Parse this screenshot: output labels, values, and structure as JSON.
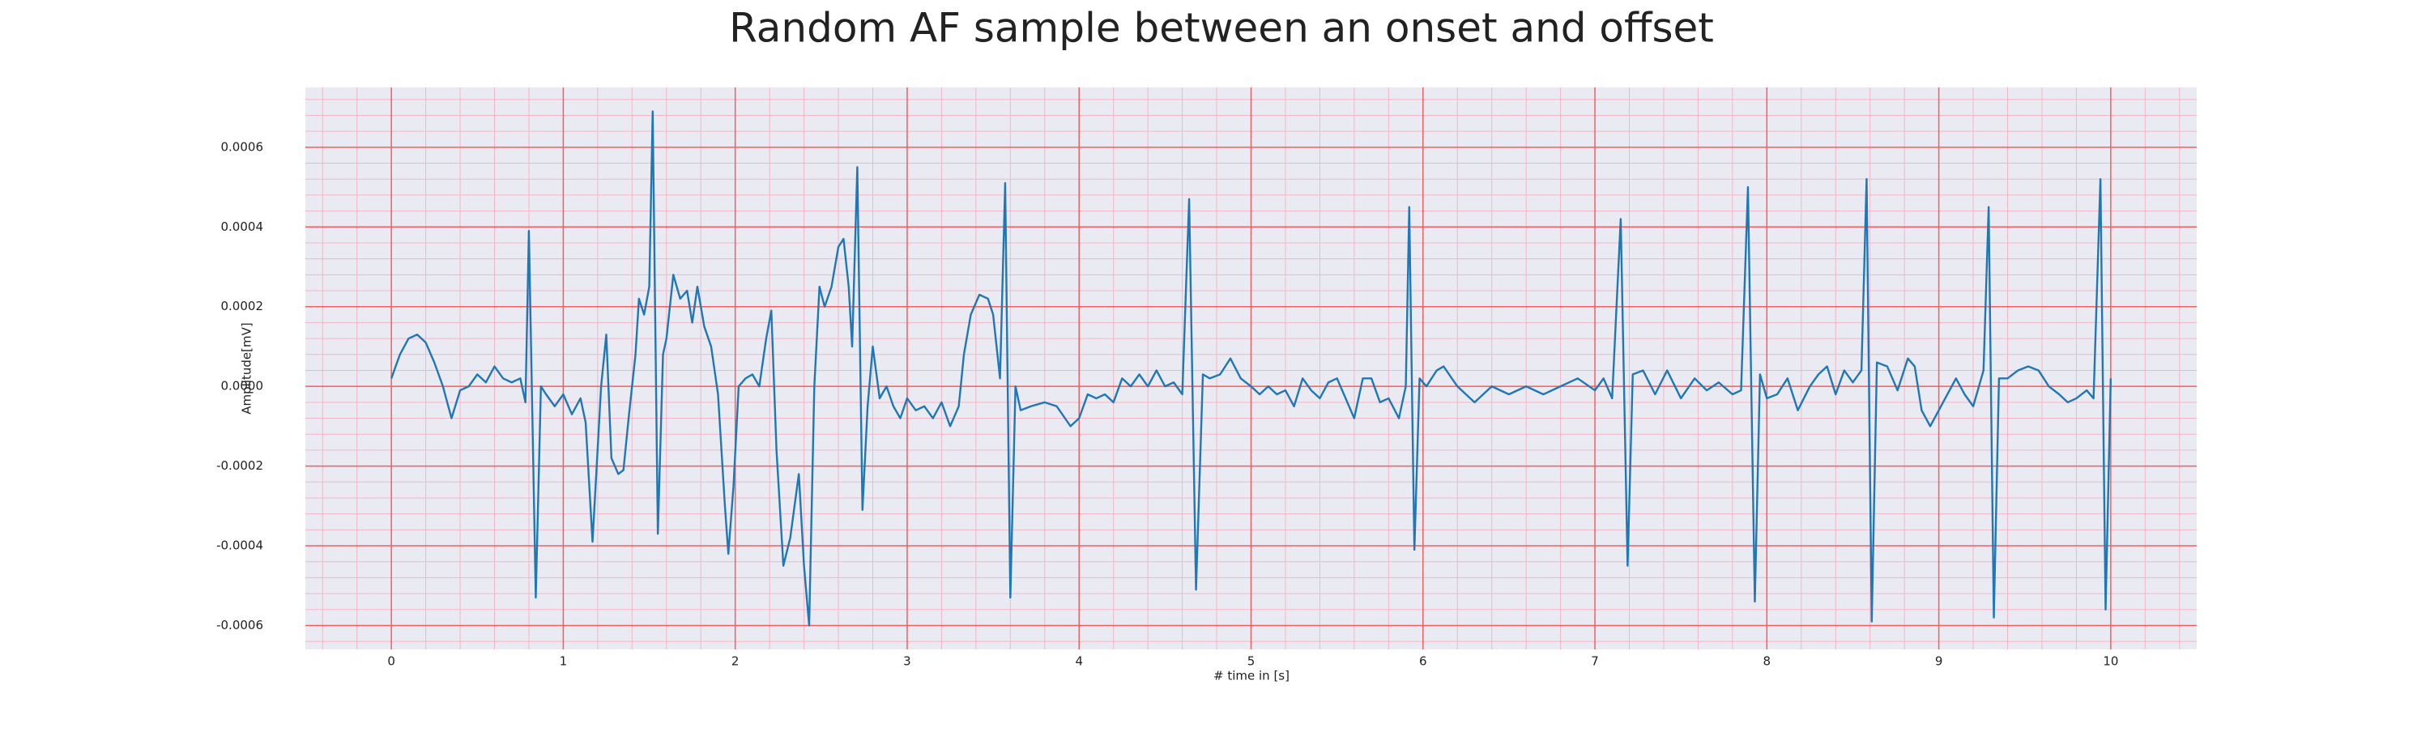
{
  "chart_data": {
    "type": "line",
    "title": "Random AF sample between an onset and offset",
    "xlabel": "# time in [s]",
    "ylabel": "Amplitude[mV]",
    "color": "#1f77b4",
    "grid": true,
    "minor_grid": true,
    "xlim": [
      -0.5,
      10.5
    ],
    "xticks": [
      0,
      1,
      2,
      3,
      4,
      5,
      6,
      7,
      8,
      9,
      10
    ],
    "ylim": [
      -0.00066,
      0.00075
    ],
    "yticks": [
      -0.0006,
      -0.0004,
      -0.0002,
      {
        "value": 0,
        "label": "0.0000"
      },
      0.0002,
      0.0004,
      0.0006
    ],
    "x": [
      0,
      0.05,
      0.1,
      0.15,
      0.2,
      0.25,
      0.3,
      0.35,
      0.4,
      0.45,
      0.5,
      0.55,
      0.6,
      0.65,
      0.7,
      0.75,
      0.78,
      0.8,
      0.84,
      0.87,
      0.9,
      0.95,
      1.0,
      1.05,
      1.1,
      1.13,
      1.17,
      1.22,
      1.25,
      1.28,
      1.32,
      1.35,
      1.38,
      1.42,
      1.44,
      1.47,
      1.5,
      1.52,
      1.55,
      1.58,
      1.6,
      1.64,
      1.68,
      1.72,
      1.75,
      1.78,
      1.82,
      1.86,
      1.9,
      1.94,
      1.96,
      1.99,
      2.02,
      2.06,
      2.1,
      2.14,
      2.18,
      2.21,
      2.24,
      2.28,
      2.32,
      2.37,
      2.4,
      2.43,
      2.46,
      2.49,
      2.52,
      2.56,
      2.6,
      2.63,
      2.66,
      2.68,
      2.71,
      2.74,
      2.77,
      2.8,
      2.84,
      2.88,
      2.92,
      2.96,
      3.0,
      3.05,
      3.1,
      3.15,
      3.2,
      3.25,
      3.3,
      3.33,
      3.37,
      3.42,
      3.47,
      3.5,
      3.54,
      3.57,
      3.6,
      3.63,
      3.66,
      3.72,
      3.8,
      3.87,
      3.95,
      4.0,
      4.05,
      4.1,
      4.15,
      4.2,
      4.25,
      4.3,
      4.35,
      4.4,
      4.45,
      4.5,
      4.55,
      4.6,
      4.64,
      4.68,
      4.72,
      4.76,
      4.82,
      4.88,
      4.94,
      5.0,
      5.05,
      5.1,
      5.15,
      5.2,
      5.25,
      5.3,
      5.35,
      5.4,
      5.45,
      5.5,
      5.55,
      5.6,
      5.65,
      5.7,
      5.75,
      5.8,
      5.86,
      5.9,
      5.92,
      5.95,
      5.98,
      6.02,
      6.08,
      6.12,
      6.2,
      6.3,
      6.4,
      6.5,
      6.6,
      6.7,
      6.8,
      6.9,
      7.0,
      7.05,
      7.1,
      7.15,
      7.19,
      7.22,
      7.28,
      7.35,
      7.42,
      7.5,
      7.58,
      7.65,
      7.72,
      7.8,
      7.85,
      7.89,
      7.93,
      7.96,
      8.0,
      8.06,
      8.12,
      8.18,
      8.25,
      8.3,
      8.35,
      8.4,
      8.45,
      8.5,
      8.55,
      8.58,
      8.61,
      8.64,
      8.7,
      8.76,
      8.82,
      8.86,
      8.9,
      8.95,
      9.0,
      9.05,
      9.1,
      9.15,
      9.2,
      9.26,
      9.29,
      9.32,
      9.35,
      9.4,
      9.46,
      9.52,
      9.58,
      9.64,
      9.7,
      9.75,
      9.8,
      9.86,
      9.9,
      9.94,
      9.97,
      10.0
    ],
    "values": [
      2e-05,
      8e-05,
      0.00012,
      0.00013,
      0.00011,
      6e-05,
      0.0,
      -8e-05,
      -1e-05,
      0.0,
      3e-05,
      1e-05,
      5e-05,
      2e-05,
      1e-05,
      2e-05,
      -4e-05,
      0.00039,
      -0.00053,
      0.0,
      -2e-05,
      -5e-05,
      -2e-05,
      -7e-05,
      -3e-05,
      -9e-05,
      -0.00039,
      0.0,
      0.00013,
      -0.00018,
      -0.00022,
      -0.00021,
      -8e-05,
      8e-05,
      0.00022,
      0.00018,
      0.00025,
      0.00069,
      -0.00037,
      8e-05,
      0.00012,
      0.00028,
      0.00022,
      0.00024,
      0.00016,
      0.00025,
      0.00015,
      0.0001,
      -2e-05,
      -0.0003,
      -0.00042,
      -0.00025,
      0.0,
      2e-05,
      3e-05,
      0.0,
      0.00012,
      0.00019,
      -0.00016,
      -0.00045,
      -0.00038,
      -0.00022,
      -0.00045,
      -0.0006,
      0.0,
      0.00025,
      0.0002,
      0.00025,
      0.00035,
      0.00037,
      0.00025,
      0.0001,
      0.00055,
      -0.00031,
      -5e-05,
      0.0001,
      -3e-05,
      0.0,
      -5e-05,
      -8e-05,
      -3e-05,
      -6e-05,
      -5e-05,
      -8e-05,
      -4e-05,
      -0.0001,
      -5e-05,
      8e-05,
      0.00018,
      0.00023,
      0.00022,
      0.00018,
      2e-05,
      0.00051,
      -0.00053,
      0.0,
      -6e-05,
      -5e-05,
      -4e-05,
      -5e-05,
      -0.0001,
      -8e-05,
      -2e-05,
      -3e-05,
      -2e-05,
      -4e-05,
      2e-05,
      0.0,
      3e-05,
      0.0,
      4e-05,
      0.0,
      1e-05,
      -2e-05,
      0.00047,
      -0.00051,
      3e-05,
      2e-05,
      3e-05,
      7e-05,
      2e-05,
      0.0,
      -2e-05,
      0.0,
      -2e-05,
      -1e-05,
      -5e-05,
      2e-05,
      -1e-05,
      -3e-05,
      1e-05,
      2e-05,
      -3e-05,
      -8e-05,
      2e-05,
      2e-05,
      -4e-05,
      -3e-05,
      -8e-05,
      0.0,
      0.00045,
      -0.00041,
      2e-05,
      0.0,
      4e-05,
      5e-05,
      0.0,
      -4e-05,
      0.0,
      -2e-05,
      0.0,
      -2e-05,
      0.0,
      2e-05,
      -1e-05,
      2e-05,
      -3e-05,
      0.00042,
      -0.00045,
      3e-05,
      4e-05,
      -2e-05,
      4e-05,
      -3e-05,
      2e-05,
      -1e-05,
      1e-05,
      -2e-05,
      -1e-05,
      0.0005,
      -0.00054,
      3e-05,
      -3e-05,
      -2e-05,
      2e-05,
      -6e-05,
      0.0,
      3e-05,
      5e-05,
      -2e-05,
      4e-05,
      1e-05,
      4e-05,
      0.00052,
      -0.00059,
      6e-05,
      5e-05,
      -1e-05,
      7e-05,
      5e-05,
      -6e-05,
      -0.0001,
      -6e-05,
      -2e-05,
      2e-05,
      -2e-05,
      -5e-05,
      4e-05,
      0.00045,
      -0.00058,
      2e-05,
      2e-05,
      4e-05,
      5e-05,
      4e-05,
      0.0,
      -2e-05,
      -4e-05,
      -3e-05,
      -1e-05,
      -3e-05,
      0.00052,
      -0.00056,
      2e-05
    ]
  }
}
